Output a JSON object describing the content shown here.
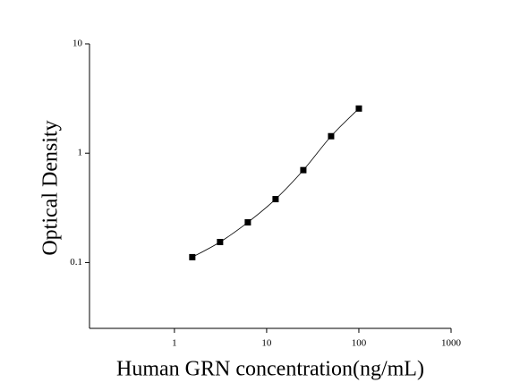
{
  "chart_data": {
    "type": "scatter",
    "x_label": "Human GRN concentration(ng/mL)",
    "y_label": "Optical Density",
    "x": [
      1.5625,
      3.125,
      6.25,
      12.5,
      25,
      50,
      100
    ],
    "values": [
      0.112,
      0.154,
      0.233,
      0.38,
      0.7,
      1.43,
      2.56
    ],
    "color": "#000000",
    "x_log": true,
    "y_log": true,
    "xlim": [
      0.12,
      1000
    ],
    "xticks": [
      1,
      10,
      100,
      1000
    ],
    "ylim": [
      0.025,
      10
    ],
    "yticks": [
      0.1,
      1,
      10
    ],
    "fit_line": true
  }
}
